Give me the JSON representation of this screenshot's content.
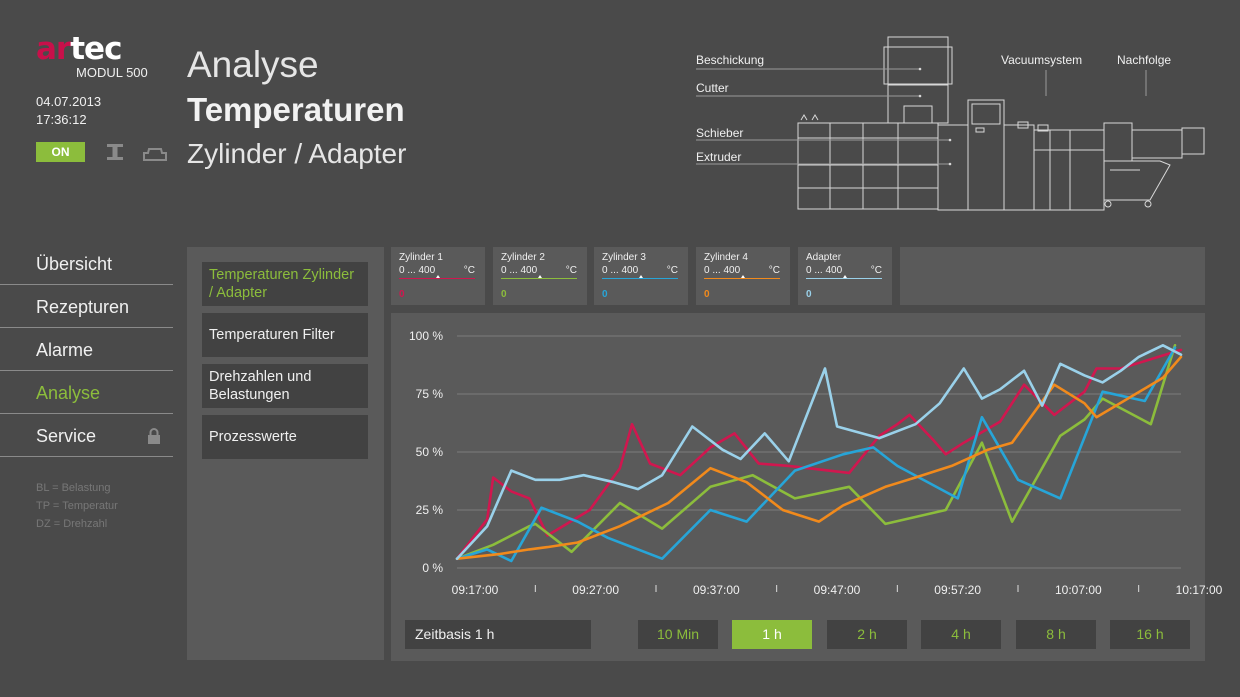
{
  "brand": {
    "logo_ar": "ar",
    "logo_tec": "tec",
    "model": "MODUL 500"
  },
  "status": {
    "date": "04.07.2013",
    "time": "17:36:12",
    "on_label": "ON"
  },
  "titles": {
    "line1": "Analyse",
    "line2": "Temperaturen",
    "line3": "Zylinder / Adapter"
  },
  "diagram": {
    "labels": {
      "beschickung": "Beschickung",
      "cutter": "Cutter",
      "schieber": "Schieber",
      "extruder": "Extruder",
      "vacuum": "Vacuumsystem",
      "nachfolge": "Nachfolge"
    }
  },
  "nav": {
    "items": [
      {
        "label": "Übersicht"
      },
      {
        "label": "Rezepturen"
      },
      {
        "label": "Alarme"
      },
      {
        "label": "Analyse"
      },
      {
        "label": "Service"
      }
    ],
    "active_index": 3
  },
  "abbrev": [
    "BL = Belastung",
    "TP = Temperatur",
    "DZ = Drehzahl"
  ],
  "submenu": [
    {
      "label": "Temperaturen Zylinder / Adapter"
    },
    {
      "label": "Temperaturen Filter"
    },
    {
      "label": "Drehzahlen und Belastungen"
    },
    {
      "label": "Prozesswerte"
    }
  ],
  "channels": [
    {
      "name": "Zylinder 1",
      "range": "0 ... 400",
      "unit": "°C",
      "value": "0",
      "color": "#d0174f"
    },
    {
      "name": "Zylinder 2",
      "range": "0 ... 400",
      "unit": "°C",
      "value": "0",
      "color": "#8cbd3c"
    },
    {
      "name": "Zylinder 3",
      "range": "0 ... 400",
      "unit": "°C",
      "value": "0",
      "color": "#27a5d8"
    },
    {
      "name": "Zylinder 4",
      "range": "0 ... 400",
      "unit": "°C",
      "value": "0",
      "color": "#f18a1c"
    },
    {
      "name": "Adapter",
      "range": "0 ... 400",
      "unit": "°C",
      "value": "0",
      "color": "#9ad1ea"
    }
  ],
  "timebase": {
    "label": "Zeitbasis 1 h",
    "buttons": [
      "10 Min",
      "1 h",
      "2 h",
      "4 h",
      "8 h",
      "16 h"
    ],
    "active_index": 1
  },
  "chart_data": {
    "type": "line",
    "y_ticks": [
      "0 %",
      "25 %",
      "50 %",
      "75 %",
      "100 %"
    ],
    "ylim": [
      0,
      100
    ],
    "x_ticks": [
      "09:17:00",
      "09:27:00",
      "09:37:00",
      "09:47:00",
      "09:57:20",
      "10:07:00",
      "10:17:00"
    ],
    "xlim": [
      0,
      60
    ],
    "grid": true,
    "series": [
      {
        "color": "#d0174f",
        "points": [
          [
            0,
            4
          ],
          [
            2.5,
            21
          ],
          [
            3,
            39
          ],
          [
            4.5,
            33
          ],
          [
            6,
            30
          ],
          [
            7.5,
            14
          ],
          [
            11,
            25
          ],
          [
            13.5,
            43
          ],
          [
            14.5,
            62
          ],
          [
            16,
            45
          ],
          [
            18.5,
            40
          ],
          [
            21,
            52
          ],
          [
            23,
            58
          ],
          [
            25,
            45
          ],
          [
            27.5,
            44
          ],
          [
            32.5,
            41
          ],
          [
            35,
            57
          ],
          [
            36.5,
            62
          ],
          [
            37.5,
            66
          ],
          [
            39.5,
            55
          ],
          [
            40.5,
            49
          ],
          [
            42,
            54
          ],
          [
            44,
            60
          ],
          [
            45,
            63
          ],
          [
            47,
            79
          ],
          [
            49.5,
            66
          ],
          [
            52,
            76
          ],
          [
            53,
            86
          ],
          [
            55,
            86
          ],
          [
            60,
            94
          ]
        ]
      },
      {
        "color": "#8cbd3c",
        "points": [
          [
            0,
            4
          ],
          [
            3,
            10
          ],
          [
            6,
            18
          ],
          [
            6.5,
            19
          ],
          [
            9.5,
            7
          ],
          [
            13.5,
            28
          ],
          [
            17,
            17
          ],
          [
            21,
            35
          ],
          [
            24.5,
            40
          ],
          [
            28,
            30
          ],
          [
            32.5,
            35
          ],
          [
            35.5,
            19
          ],
          [
            40.5,
            25
          ],
          [
            43.5,
            54
          ],
          [
            46,
            20
          ],
          [
            50,
            57
          ],
          [
            52,
            64
          ],
          [
            53.5,
            73
          ],
          [
            57.5,
            62
          ],
          [
            59.5,
            96
          ]
        ]
      },
      {
        "color": "#27a5d8",
        "points": [
          [
            0,
            4
          ],
          [
            2.5,
            8
          ],
          [
            4.5,
            3
          ],
          [
            7,
            26
          ],
          [
            10,
            20
          ],
          [
            12.5,
            13
          ],
          [
            14.5,
            9
          ],
          [
            17,
            4
          ],
          [
            21,
            25
          ],
          [
            24,
            20
          ],
          [
            28,
            42
          ],
          [
            32,
            49
          ],
          [
            34.5,
            52
          ],
          [
            36.5,
            44
          ],
          [
            41.5,
            30
          ],
          [
            43.5,
            65
          ],
          [
            46.5,
            38
          ],
          [
            50,
            30
          ],
          [
            53.5,
            76
          ],
          [
            57,
            72
          ],
          [
            59.5,
            95
          ]
        ]
      },
      {
        "color": "#f18a1c",
        "points": [
          [
            0,
            4
          ],
          [
            3.5,
            6
          ],
          [
            6,
            8
          ],
          [
            7.5,
            9
          ],
          [
            10,
            11
          ],
          [
            13.5,
            18
          ],
          [
            17.5,
            28
          ],
          [
            21,
            43
          ],
          [
            24,
            37
          ],
          [
            27,
            25
          ],
          [
            30,
            20
          ],
          [
            32,
            27
          ],
          [
            35.5,
            35
          ],
          [
            38,
            39
          ],
          [
            41,
            44
          ],
          [
            44,
            51
          ],
          [
            46,
            54
          ],
          [
            49.5,
            79
          ],
          [
            52,
            71
          ],
          [
            53,
            65
          ],
          [
            58.5,
            82
          ],
          [
            60,
            91
          ]
        ]
      },
      {
        "color": "#9ad1ea",
        "points": [
          [
            0,
            4
          ],
          [
            2.5,
            18
          ],
          [
            4.5,
            42
          ],
          [
            6.5,
            38
          ],
          [
            8.5,
            38
          ],
          [
            10.5,
            40
          ],
          [
            13,
            37
          ],
          [
            15,
            34
          ],
          [
            17,
            40
          ],
          [
            19.5,
            61
          ],
          [
            22,
            51
          ],
          [
            23.5,
            47
          ],
          [
            25.5,
            58
          ],
          [
            27.5,
            46
          ],
          [
            30.5,
            86
          ],
          [
            31.5,
            61
          ],
          [
            35,
            56
          ],
          [
            38,
            62
          ],
          [
            40,
            71
          ],
          [
            42,
            86
          ],
          [
            43.5,
            73
          ],
          [
            45,
            77
          ],
          [
            47,
            85
          ],
          [
            48.5,
            70
          ],
          [
            50,
            88
          ],
          [
            52,
            83
          ],
          [
            53.5,
            80
          ],
          [
            55,
            85
          ],
          [
            56.5,
            91
          ],
          [
            58.5,
            96
          ],
          [
            60,
            92
          ]
        ]
      }
    ]
  }
}
